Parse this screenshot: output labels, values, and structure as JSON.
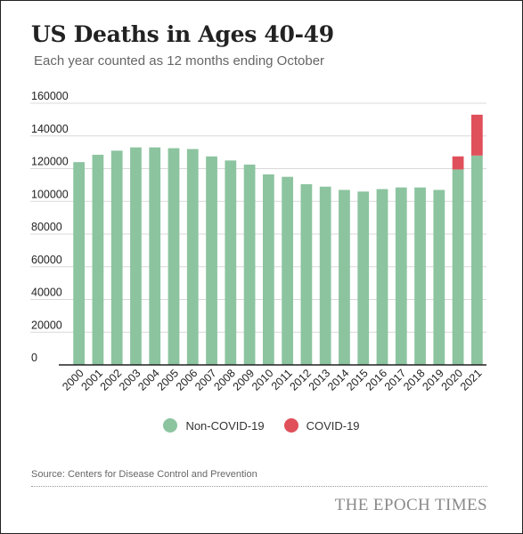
{
  "header": {
    "title": "US Deaths in Ages 40-49",
    "subtitle": "Each year counted as 12 months ending October"
  },
  "legend": [
    {
      "label": "Non-COVID-19",
      "color": "#8cc4a0"
    },
    {
      "label": "COVID-19",
      "color": "#e0505a"
    }
  ],
  "footer": {
    "source": "Source: Centers for Disease Control and Prevention",
    "logo": "THE EPOCH TIMES"
  },
  "chart_data": {
    "type": "bar",
    "stacked": true,
    "title": "US Deaths in Ages 40-49",
    "subtitle": "Each year counted as 12 months ending October",
    "xlabel": "",
    "ylabel": "",
    "ylim": [
      0,
      160000
    ],
    "yticks": [
      "0",
      "20000",
      "40000",
      "60000",
      "80000",
      "100000",
      "120000",
      "140000",
      "160000"
    ],
    "grid": true,
    "legend_position": "bottom",
    "categories": [
      "2000",
      "2001",
      "2002",
      "2003",
      "2004",
      "2005",
      "2006",
      "2007",
      "2008",
      "2009",
      "2010",
      "2011",
      "2012",
      "2013",
      "2014",
      "2015",
      "2016",
      "2017",
      "2018",
      "2019",
      "2020",
      "2021"
    ],
    "series": [
      {
        "name": "Non-COVID-19",
        "color": "#8cc4a0",
        "values": [
          124000,
          128500,
          131000,
          133000,
          133000,
          132500,
          132000,
          127500,
          125000,
          122500,
          116500,
          115000,
          110500,
          109000,
          107000,
          106000,
          107500,
          108500,
          108500,
          107000,
          119500,
          128000
        ]
      },
      {
        "name": "COVID-19",
        "color": "#e0505a",
        "values": [
          0,
          0,
          0,
          0,
          0,
          0,
          0,
          0,
          0,
          0,
          0,
          0,
          0,
          0,
          0,
          0,
          0,
          0,
          0,
          0,
          8000,
          25000
        ]
      }
    ]
  }
}
